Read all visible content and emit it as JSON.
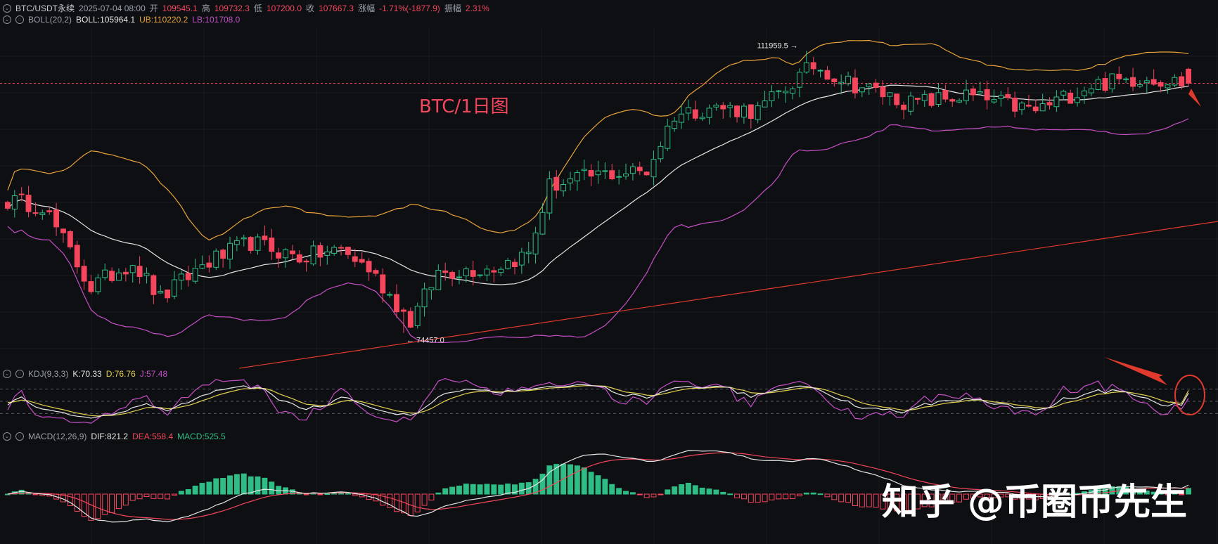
{
  "header": {
    "symbol": "BTC/USDT永续",
    "datetime": "2025-07-04 08:00",
    "open_label": "开",
    "open": "109545.1",
    "high_label": "高",
    "high": "109732.3",
    "low_label": "低",
    "low": "107200.0",
    "close_label": "收",
    "close": "107667.3",
    "change_label": "涨幅",
    "change": "-1.71%(-1877.9)",
    "amp_label": "振幅",
    "amp": "2.31%"
  },
  "boll": {
    "label": "BOLL(20,2)",
    "mid": "BOLL:105964.1",
    "ub": "UB:110220.2",
    "lb": "LB:101708.0"
  },
  "kdj": {
    "label": "KDJ(9,3,3)",
    "k": "K:70.33",
    "d": "D:76.76",
    "j": "J:57.48"
  },
  "macd": {
    "label": "MACD(12,26,9)",
    "dif": "DIF:821.2",
    "dea": "DEA:558.4",
    "macd": "MACD:525.5"
  },
  "annotations": {
    "chart_label": "BTC/1日图",
    "high_marker": "111959.5",
    "low_marker": "74457.0"
  },
  "watermark": "知乎 @币圈币先生",
  "colors": {
    "up": "#2ebd85",
    "down": "#f6465d",
    "ub": "#e8a33a",
    "mid": "#e6e6e6",
    "lb": "#c64fc8",
    "trend": "#e03a2e",
    "k": "#e6e6e6",
    "d": "#e3d04f",
    "j": "#c64fc8"
  },
  "chart_data": {
    "type": "line",
    "title": "BTC/1日图",
    "subtitle": "BTC/USDT永续",
    "price_range": [
      72000,
      115000
    ],
    "keypoints": [
      {
        "i": 0,
        "p": 92000
      },
      {
        "i": 5,
        "p": 91500
      },
      {
        "i": 12,
        "p": 80500
      },
      {
        "i": 18,
        "p": 84000
      },
      {
        "i": 22,
        "p": 79000
      },
      {
        "i": 28,
        "p": 83500
      },
      {
        "i": 35,
        "p": 86500
      },
      {
        "i": 42,
        "p": 84500
      },
      {
        "i": 48,
        "p": 85500
      },
      {
        "i": 52,
        "p": 83000
      },
      {
        "i": 58,
        "p": 76000
      },
      {
        "i": 62,
        "p": 82500
      },
      {
        "i": 70,
        "p": 83200
      },
      {
        "i": 75,
        "p": 85000
      },
      {
        "i": 78,
        "p": 94000
      },
      {
        "i": 85,
        "p": 95500
      },
      {
        "i": 92,
        "p": 96000
      },
      {
        "i": 96,
        "p": 103500
      },
      {
        "i": 101,
        "p": 104500
      },
      {
        "i": 108,
        "p": 104000
      },
      {
        "i": 116,
        "p": 110000
      },
      {
        "i": 122,
        "p": 107500
      },
      {
        "i": 130,
        "p": 105000
      },
      {
        "i": 138,
        "p": 106000
      },
      {
        "i": 148,
        "p": 104000
      },
      {
        "i": 156,
        "p": 107500
      },
      {
        "i": 164,
        "p": 108500
      },
      {
        "i": 170,
        "p": 107600
      }
    ],
    "candle_count": 171,
    "high": 111959.5,
    "low": 74457.0,
    "last": {
      "open": 109545.1,
      "high": 109732.3,
      "low": 107200.0,
      "close": 107667.3
    },
    "boll_last": {
      "mid": 105964.1,
      "ub": 110220.2,
      "lb": 101708.0
    },
    "kdj_last": {
      "k": 70.33,
      "d": 76.76,
      "j": 57.48
    },
    "macd_last": {
      "dif": 821.2,
      "dea": 558.4,
      "macd": 525.5
    }
  }
}
